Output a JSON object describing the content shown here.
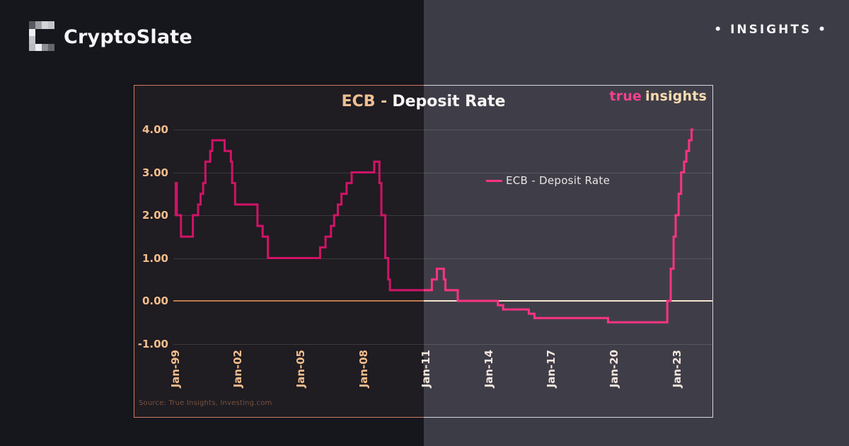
{
  "header": {
    "brand": "CryptoSlate",
    "badge": "• INSIGHTS •"
  },
  "chart": {
    "title_left": "ECB -",
    "title_right": "Deposit Rate",
    "brand_word1": "true",
    "brand_word2": "insights",
    "legend": "ECB - Deposit Rate",
    "source": "Source: True Insights, Investing.com"
  },
  "chart_data": {
    "type": "line",
    "title": "ECB - Deposit Rate",
    "units": "percent",
    "step": "after",
    "grid": true,
    "legend_position": "center",
    "ylim": [
      -1.0,
      4.0
    ],
    "xlim_years": [
      1998.84,
      2024.13
    ],
    "y_ticks": [
      {
        "value": 4,
        "label": "4.00"
      },
      {
        "value": 3,
        "label": "3.00"
      },
      {
        "value": 2,
        "label": "2.00"
      },
      {
        "value": 1,
        "label": "1.00"
      },
      {
        "value": 0,
        "label": "0.00"
      },
      {
        "value": -1,
        "label": "-1.00"
      }
    ],
    "x_ticks": [
      {
        "year": 1999,
        "label": "Jan-99"
      },
      {
        "year": 2002,
        "label": "Jan-02"
      },
      {
        "year": 2005,
        "label": "Jan-05"
      },
      {
        "year": 2008,
        "label": "Jan-08"
      },
      {
        "year": 2011,
        "label": "Jan-11"
      },
      {
        "year": 2014,
        "label": "Jan-14"
      },
      {
        "year": 2017,
        "label": "Jan-17"
      },
      {
        "year": 2020,
        "label": "Jan-20"
      },
      {
        "year": 2023,
        "label": "Jan-23"
      }
    ],
    "series": [
      {
        "name": "ECB - Deposit Rate",
        "points": [
          [
            1999.0,
            2.0
          ],
          [
            1999.02,
            2.75
          ],
          [
            1999.07,
            2.0
          ],
          [
            1999.27,
            1.5
          ],
          [
            1999.84,
            2.0
          ],
          [
            2000.09,
            2.25
          ],
          [
            2000.21,
            2.5
          ],
          [
            2000.33,
            2.75
          ],
          [
            2000.44,
            3.25
          ],
          [
            2000.67,
            3.5
          ],
          [
            2000.77,
            3.75
          ],
          [
            2001.36,
            3.5
          ],
          [
            2001.66,
            3.25
          ],
          [
            2001.72,
            2.75
          ],
          [
            2001.86,
            2.25
          ],
          [
            2002.93,
            1.75
          ],
          [
            2003.18,
            1.5
          ],
          [
            2003.43,
            1.0
          ],
          [
            2005.93,
            1.25
          ],
          [
            2006.19,
            1.5
          ],
          [
            2006.45,
            1.75
          ],
          [
            2006.6,
            2.0
          ],
          [
            2006.78,
            2.25
          ],
          [
            2006.95,
            2.5
          ],
          [
            2007.2,
            2.75
          ],
          [
            2007.44,
            3.0
          ],
          [
            2008.52,
            3.25
          ],
          [
            2008.77,
            2.75
          ],
          [
            2008.86,
            2.0
          ],
          [
            2009.05,
            1.0
          ],
          [
            2009.19,
            0.5
          ],
          [
            2009.27,
            0.25
          ],
          [
            2011.28,
            0.5
          ],
          [
            2011.52,
            0.75
          ],
          [
            2011.85,
            0.5
          ],
          [
            2011.93,
            0.25
          ],
          [
            2012.52,
            0.0
          ],
          [
            2014.44,
            -0.1
          ],
          [
            2014.69,
            -0.2
          ],
          [
            2015.92,
            -0.3
          ],
          [
            2016.19,
            -0.4
          ],
          [
            2019.71,
            -0.5
          ],
          [
            2022.55,
            0.0
          ],
          [
            2022.71,
            0.75
          ],
          [
            2022.85,
            1.5
          ],
          [
            2022.95,
            2.0
          ],
          [
            2023.09,
            2.5
          ],
          [
            2023.21,
            3.0
          ],
          [
            2023.35,
            3.25
          ],
          [
            2023.46,
            3.5
          ],
          [
            2023.59,
            3.75
          ],
          [
            2023.71,
            4.0
          ],
          [
            2023.8,
            4.0
          ]
        ]
      }
    ]
  },
  "colors": {
    "background_left": "#16161d",
    "background_right": "#3c3c46",
    "panel_left": "#1f1c22",
    "panel_right": "#3f3e48",
    "border_left": "#cd7c5f",
    "border_right": "#d9d3d9",
    "gridline": "rgba(255,255,255,0.13)",
    "zero_line_left": "#bd7b4c",
    "zero_line_right": "#f2e5cd",
    "line_left": "#d01366",
    "line_right": "#fb3383",
    "y_label": "#f2bd8c",
    "x_label_left": "#f2bd8c",
    "x_label_right": "#f5e6de",
    "title_left_color": "#eebe92",
    "title_right_color": "#f8f5f4",
    "legend_text": "#e9e4e4",
    "brand_true": "#f4418f",
    "brand_insights": "#fbdcb0",
    "source_text": "#76523e",
    "header_text": "#f5f5f7",
    "badge_text": "#f3f2f5"
  }
}
